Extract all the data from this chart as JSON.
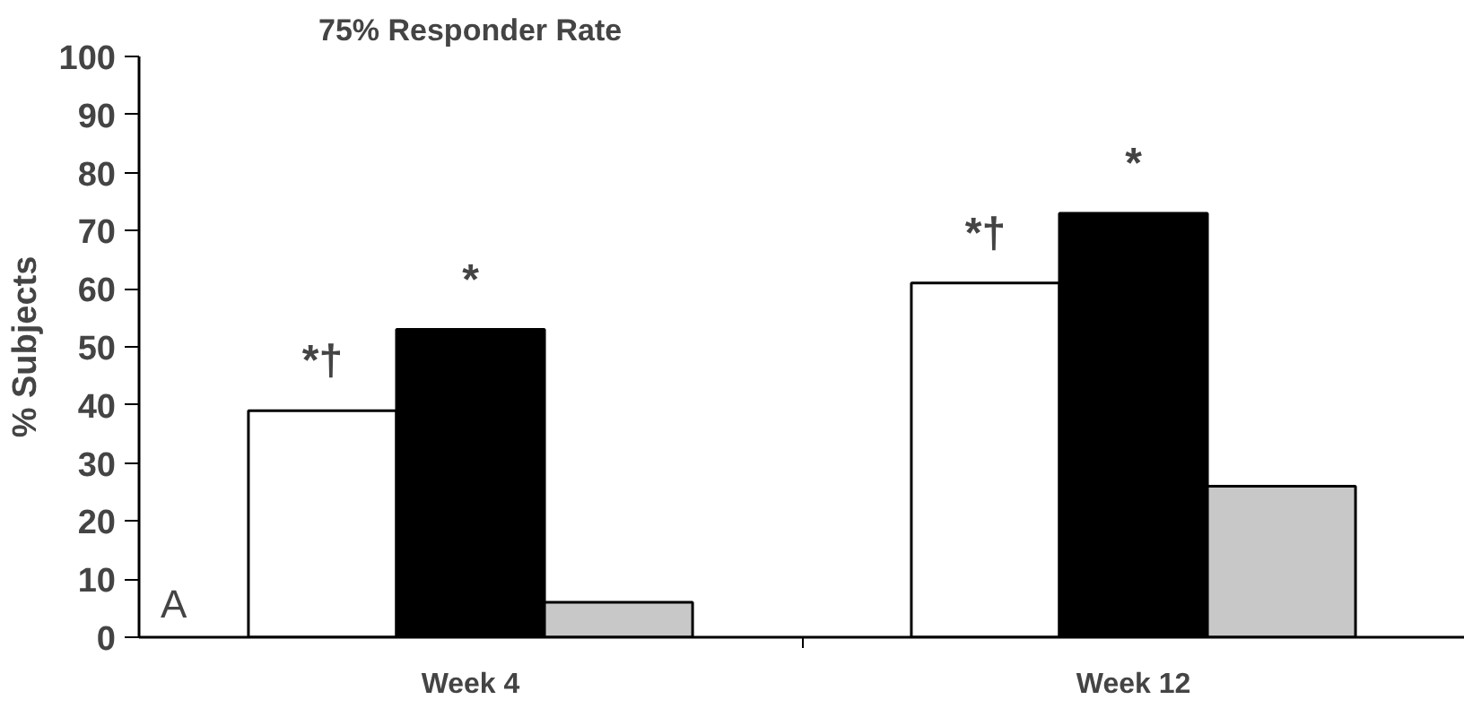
{
  "chart_data": {
    "type": "bar",
    "title": "75% Responder Rate",
    "ylabel": "% Subjects",
    "categories": [
      "Week 4",
      "Week 12"
    ],
    "series": [
      {
        "color": "#ffffff",
        "values": [
          39,
          61
        ],
        "value_labels": [
          "*†",
          "*†"
        ]
      },
      {
        "color": "#000000",
        "values": [
          53,
          73
        ],
        "value_labels": [
          "*",
          "*"
        ]
      },
      {
        "color": "#c8c8c8",
        "values": [
          6,
          26
        ]
      }
    ],
    "ylim": [
      0,
      100
    ],
    "yticks": [
      0,
      10,
      20,
      30,
      40,
      50,
      60,
      70,
      80,
      90,
      100
    ],
    "grid": false,
    "annotations": [
      "A"
    ]
  }
}
